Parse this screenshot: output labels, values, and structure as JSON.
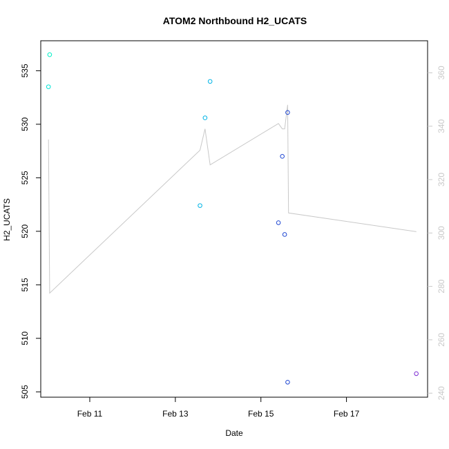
{
  "chart_data": {
    "type": "scatter",
    "title": "ATOM2 Northbound H2_UCATS",
    "xlabel": "Date",
    "ylabel": "H2_UCATS",
    "x_axis": {
      "type": "date",
      "ticks": [
        {
          "date": "2017-02-11",
          "label": "Feb 11"
        },
        {
          "date": "2017-02-13",
          "label": "Feb 13"
        },
        {
          "date": "2017-02-15",
          "label": "Feb 15"
        },
        {
          "date": "2017-02-17",
          "label": "Feb 17"
        }
      ],
      "xlim": [
        "2017-02-09T20:30",
        "2017-02-18T21:30"
      ]
    },
    "y_axis_left": {
      "ylim": [
        504.5,
        537.8
      ],
      "ticks": [
        505,
        510,
        515,
        520,
        525,
        530,
        535
      ]
    },
    "y_axis_right": {
      "color": "#c8c8c8",
      "ylim": [
        238.5,
        372
      ],
      "ticks": [
        240,
        260,
        280,
        300,
        320,
        340,
        360
      ]
    },
    "points": [
      {
        "x": "2017-02-10T00:50",
        "y": 533.5,
        "color": "#00e5d6"
      },
      {
        "x": "2017-02-10T01:30",
        "y": 536.5,
        "color": "#00f0c8"
      },
      {
        "x": "2017-02-13T13:50",
        "y": 522.4,
        "color": "#00b4e6"
      },
      {
        "x": "2017-02-13T16:40",
        "y": 530.6,
        "color": "#00b4e6"
      },
      {
        "x": "2017-02-13T19:30",
        "y": 534.0,
        "color": "#00b4e6"
      },
      {
        "x": "2017-02-15T09:50",
        "y": 520.8,
        "color": "#1e46d2"
      },
      {
        "x": "2017-02-15T12:00",
        "y": 527.0,
        "color": "#1e46d2"
      },
      {
        "x": "2017-02-15T13:20",
        "y": 519.7,
        "color": "#1e46d2"
      },
      {
        "x": "2017-02-15T15:00",
        "y": 531.1,
        "color": "#1e46d2"
      },
      {
        "x": "2017-02-15T15:00",
        "y": 505.9,
        "color": "#1e46d2"
      },
      {
        "x": "2017-02-18T15:10",
        "y": 506.7,
        "color": "#7a28d2"
      }
    ],
    "line_series_right_axis": {
      "color": "#c8c8c8",
      "points": [
        {
          "x": "2017-02-10T00:50",
          "y": 335
        },
        {
          "x": "2017-02-10T01:30",
          "y": 277.5
        },
        {
          "x": "2017-02-13T13:50",
          "y": 331
        },
        {
          "x": "2017-02-13T16:40",
          "y": 339
        },
        {
          "x": "2017-02-13T19:30",
          "y": 325.5
        },
        {
          "x": "2017-02-15T09:50",
          "y": 341
        },
        {
          "x": "2017-02-15T12:00",
          "y": 339
        },
        {
          "x": "2017-02-15T13:20",
          "y": 339
        },
        {
          "x": "2017-02-15T15:00",
          "y": 348
        },
        {
          "x": "2017-02-15T15:30",
          "y": 307.5
        },
        {
          "x": "2017-02-18T15:10",
          "y": 300.5
        }
      ]
    }
  }
}
